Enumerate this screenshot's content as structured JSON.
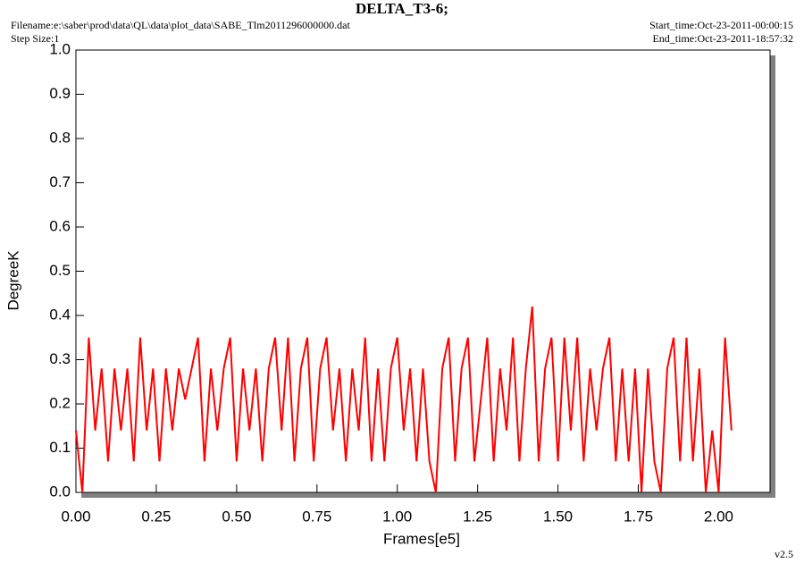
{
  "chart_data": {
    "type": "line",
    "title": "DELTA_T3-6;",
    "filename": "Filename:e:\\saber\\prod\\data\\QL\\data\\plot_data\\SABE_Tlm2011296000000.dat",
    "step_size": "Step Size:1",
    "start_time": "Start_time:Oct-23-2011-00:00:15",
    "end_time": "End_time:Oct-23-2011-18:57:32",
    "version": "v2.5",
    "xlabel": "Frames[e5]",
    "ylabel": "DegreeK",
    "xlim": [
      0,
      2.16
    ],
    "ylim": [
      0,
      1
    ],
    "xticks": [
      {
        "value": 0,
        "label": "0.00"
      },
      {
        "value": 0.25,
        "label": "0.25"
      },
      {
        "value": 0.5,
        "label": "0.50"
      },
      {
        "value": 0.75,
        "label": "0.75"
      },
      {
        "value": 1,
        "label": "1.00"
      },
      {
        "value": 1.25,
        "label": "1.25"
      },
      {
        "value": 1.5,
        "label": "1.50"
      },
      {
        "value": 1.75,
        "label": "1.75"
      },
      {
        "value": 2,
        "label": "2.00"
      }
    ],
    "yticks": [
      {
        "value": 0,
        "label": "0.0"
      },
      0.1,
      0.2,
      0.3,
      0.4,
      0.5,
      0.6,
      0.7,
      0.8,
      0.9,
      {
        "value": 1,
        "label": "1.0"
      }
    ],
    "x": [
      0,
      0.02,
      0.04,
      0.06,
      0.08,
      0.1,
      0.12,
      0.14,
      0.16,
      0.18,
      0.2,
      0.22,
      0.24,
      0.26,
      0.28,
      0.3,
      0.32,
      0.34,
      0.36,
      0.38,
      0.4,
      0.42,
      0.44,
      0.46,
      0.48,
      0.5,
      0.52,
      0.54,
      0.56,
      0.58,
      0.6,
      0.62,
      0.64,
      0.66,
      0.68,
      0.7,
      0.72,
      0.74,
      0.76,
      0.78,
      0.8,
      0.82,
      0.84,
      0.86,
      0.88,
      0.9,
      0.92,
      0.94,
      0.96,
      0.98,
      1,
      1.02,
      1.04,
      1.06,
      1.08,
      1.1,
      1.12,
      1.14,
      1.16,
      1.18,
      1.2,
      1.22,
      1.24,
      1.26,
      1.28,
      1.3,
      1.32,
      1.34,
      1.36,
      1.38,
      1.4,
      1.42,
      1.44,
      1.46,
      1.48,
      1.5,
      1.52,
      1.54,
      1.56,
      1.58,
      1.6,
      1.62,
      1.64,
      1.66,
      1.68,
      1.7,
      1.72,
      1.74,
      1.76,
      1.78,
      1.8,
      1.82,
      1.84,
      1.86,
      1.88,
      1.9,
      1.92,
      1.94,
      1.96,
      1.98,
      2,
      2.02,
      2.04
    ],
    "series": [
      {
        "color": "#ff0000",
        "values": [
          0.14,
          0,
          0.35,
          0.14,
          0.28,
          0.07,
          0.28,
          0.14,
          0.28,
          0.07,
          0.35,
          0.14,
          0.28,
          0.07,
          0.28,
          0.14,
          0.28,
          0.21,
          0.28,
          0.35,
          0.07,
          0.28,
          0.14,
          0.28,
          0.35,
          0.07,
          0.28,
          0.14,
          0.28,
          0.07,
          0.28,
          0.35,
          0.14,
          0.35,
          0.07,
          0.28,
          0.35,
          0.07,
          0.28,
          0.35,
          0.14,
          0.28,
          0.07,
          0.28,
          0.14,
          0.35,
          0.07,
          0.28,
          0.07,
          0.28,
          0.35,
          0.14,
          0.28,
          0.07,
          0.28,
          0.07,
          0,
          0.28,
          0.35,
          0.07,
          0.28,
          0.35,
          0.07,
          0.21,
          0.35,
          0.07,
          0.28,
          0.14,
          0.35,
          0.07,
          0.28,
          0.42,
          0.07,
          0.28,
          0.35,
          0.07,
          0.35,
          0.14,
          0.35,
          0.07,
          0.28,
          0.14,
          0.28,
          0.35,
          0.07,
          0.28,
          0.07,
          0.28,
          0,
          0.28,
          0.07,
          0,
          0.28,
          0.35,
          0.07,
          0.35,
          0.07,
          0.28,
          0,
          0.14,
          0,
          0.35,
          0.14
        ]
      }
    ]
  }
}
